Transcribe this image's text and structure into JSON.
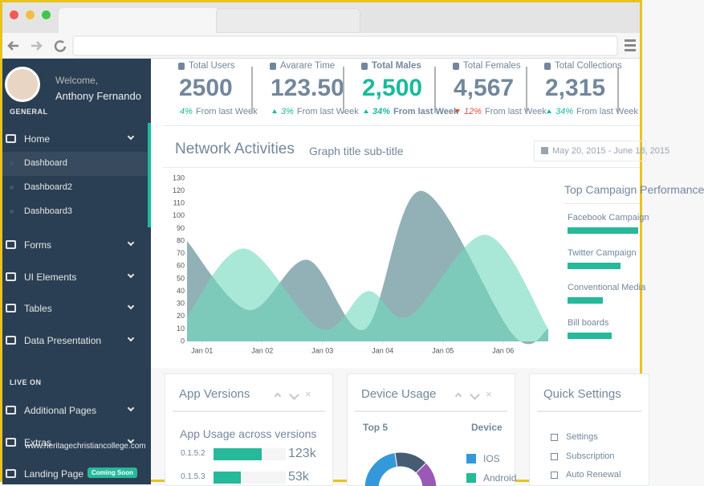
{
  "sidebar": {
    "welcome": "Welcome,",
    "user": "Anthony Fernando",
    "section1": "GENERAL",
    "menu": [
      {
        "label": "Home",
        "children": [
          "Dashboard",
          "Dashboard2",
          "Dashboard3"
        ]
      },
      {
        "label": "Forms"
      },
      {
        "label": "UI Elements"
      },
      {
        "label": "Tables"
      },
      {
        "label": "Data Presentation"
      }
    ],
    "section2": "LIVE ON",
    "menu2": [
      {
        "label": "Additional Pages"
      },
      {
        "label": "Extras"
      },
      {
        "label": "Landing Page",
        "badge": "Coming Soon"
      }
    ]
  },
  "stats": [
    {
      "label": "Total Users",
      "value": "2500",
      "change": "4%",
      "note": "From last Week"
    },
    {
      "label": "Avarare Time",
      "value": "123.50",
      "change": "3%",
      "note": "From last Week",
      "trend": "up"
    },
    {
      "label": "Total Males",
      "value": "2,500",
      "change": "34%",
      "note": "From last Week",
      "trend": "up",
      "highlight": true
    },
    {
      "label": "Total Females",
      "value": "4,567",
      "change": "12%",
      "note": "From last Week",
      "trend": "down"
    },
    {
      "label": "Total Collections",
      "value": "2,315",
      "change": "34%",
      "note": "From last Week",
      "trend": "up"
    }
  ],
  "chart_data": {
    "type": "area",
    "title": "Network Activities",
    "subtitle": "Graph title sub-title",
    "date_range": "May 20, 2015 - June 18, 2015",
    "xlim": [
      0.75,
      6.75
    ],
    "xticks": [
      {
        "value": 1,
        "label": "Jan 01"
      },
      {
        "value": 2,
        "label": "Jan 02"
      },
      {
        "value": 3,
        "label": "Jan 03"
      },
      {
        "value": 4,
        "label": "Jan 04"
      },
      {
        "value": 5,
        "label": "Jan 05"
      },
      {
        "value": 6,
        "label": "Jan 06"
      }
    ],
    "ylim": [
      0,
      130
    ],
    "yticks": [
      0,
      10,
      20,
      30,
      40,
      50,
      60,
      70,
      80,
      90,
      100,
      110,
      120,
      130
    ],
    "series": [
      {
        "color": "#6e979e",
        "x": [
          0.75,
          1.77,
          2.75,
          3.71,
          4.64,
          6.17,
          6.75
        ],
        "values": [
          80,
          25,
          65,
          10,
          120,
          5,
          10
        ]
      },
      {
        "color": "#6fd8bd",
        "x": [
          0.75,
          1.71,
          2.97,
          3.75,
          4.44,
          5.71,
          6.75
        ],
        "values": [
          20,
          74,
          10,
          40,
          20,
          85,
          10
        ]
      }
    ]
  },
  "campaigns": {
    "title": "Top Campaign Performance",
    "items": [
      {
        "name": "Facebook Campaign",
        "value": 80
      },
      {
        "name": "Twitter Campaign",
        "value": 60
      },
      {
        "name": "Conventional Media",
        "value": 40
      },
      {
        "name": "Bill boards",
        "value": 50
      }
    ]
  },
  "app_versions": {
    "title": "App Versions",
    "subtitle": "App Usage across versions",
    "rows": [
      {
        "version": "0.1.5.2",
        "value": "123k",
        "share": 67
      },
      {
        "version": "0.1.5.3",
        "value": "53k",
        "share": 38
      }
    ]
  },
  "device_usage": {
    "title": "Device Usage",
    "col1": "Top 5",
    "col2": "Device",
    "legend": [
      {
        "name": "IOS",
        "color": "#3498db"
      },
      {
        "name": "Android",
        "color": "#26b99a"
      }
    ]
  },
  "quick_settings": {
    "title": "Quick Settings",
    "items": [
      "Settings",
      "Subscription",
      "Auto Renewal"
    ]
  },
  "watermark": "www.heritagechristiancollege.com"
}
